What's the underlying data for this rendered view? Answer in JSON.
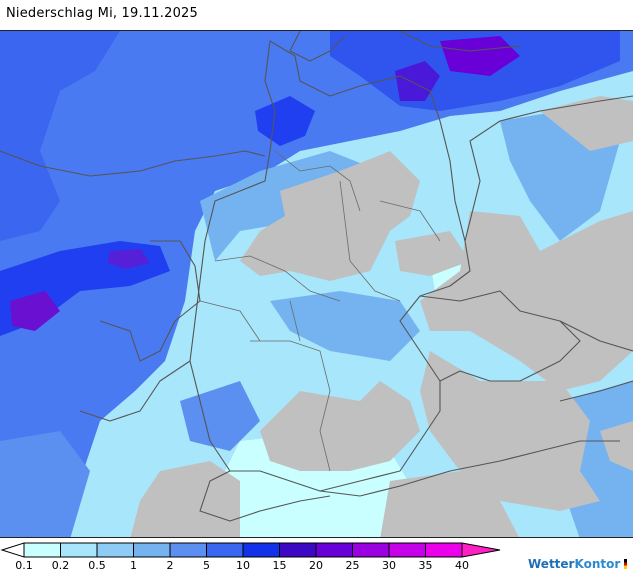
{
  "title": "Niederschlag Mi, 19.11.2025",
  "legend": {
    "ticks": [
      "0.1",
      "0.2",
      "0.5",
      "1",
      "2",
      "5",
      "10",
      "15",
      "20",
      "25",
      "30",
      "35",
      "40"
    ],
    "colors": [
      "#c9ffff",
      "#a8e6fb",
      "#8dccf5",
      "#74b3f0",
      "#5b8ff0",
      "#3a66f0",
      "#1431ea",
      "#3c08c4",
      "#6a00d8",
      "#9a00e0",
      "#c600e8",
      "#ec00ec",
      "#ff20c4"
    ]
  },
  "brand": {
    "name": "Wetter",
    "name2": "Kontor"
  },
  "map": {
    "land_color": "#c0c0c0",
    "sea_color": "#4a7af2",
    "border_color": "#555555"
  }
}
